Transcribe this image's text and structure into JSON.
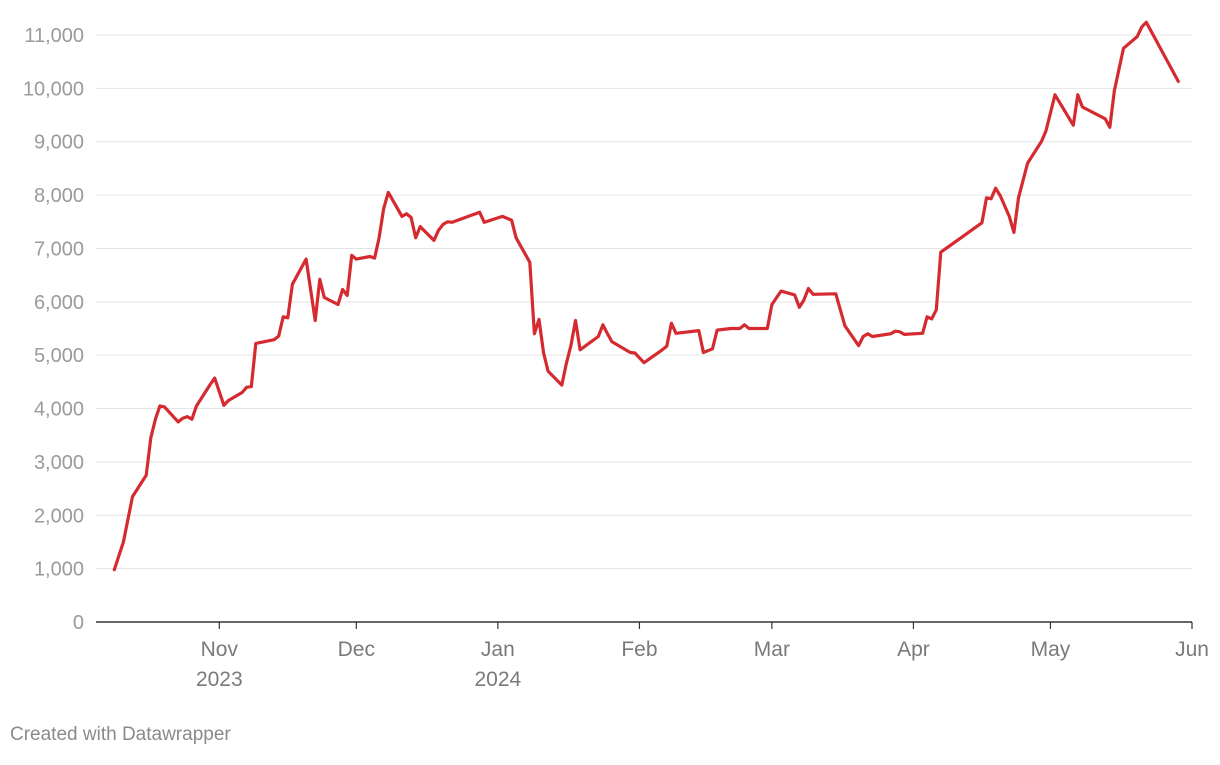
{
  "chart_data": {
    "type": "line",
    "title": "",
    "xlabel": "",
    "ylabel": "",
    "ylim": [
      0,
      11000
    ],
    "yticks": [
      "0",
      "1,000",
      "2,000",
      "3,000",
      "4,000",
      "5,000",
      "6,000",
      "7,000",
      "8,000",
      "9,000",
      "10,000",
      "11,000"
    ],
    "ytick_values": [
      0,
      1000,
      2000,
      3000,
      4000,
      5000,
      6000,
      7000,
      8000,
      9000,
      10000,
      11000
    ],
    "xlim": [
      "2023-10-05",
      "2024-06-01"
    ],
    "xticks": [
      {
        "date": "2023-11-01",
        "label": "Nov",
        "sublabel": "2023"
      },
      {
        "date": "2023-12-01",
        "label": "Dec",
        "sublabel": ""
      },
      {
        "date": "2024-01-01",
        "label": "Jan",
        "sublabel": "2024"
      },
      {
        "date": "2024-02-01",
        "label": "Feb",
        "sublabel": ""
      },
      {
        "date": "2024-03-01",
        "label": "Mar",
        "sublabel": ""
      },
      {
        "date": "2024-04-01",
        "label": "Apr",
        "sublabel": ""
      },
      {
        "date": "2024-05-01",
        "label": "May",
        "sublabel": ""
      },
      {
        "date": "2024-06-01",
        "label": "Jun",
        "sublabel": ""
      }
    ],
    "grid": true,
    "series": [
      {
        "color": "#d52a2f",
        "points": [
          [
            "2023-10-09",
            980
          ],
          [
            "2023-10-11",
            1500
          ],
          [
            "2023-10-13",
            2350
          ],
          [
            "2023-10-16",
            2750
          ],
          [
            "2023-10-17",
            3450
          ],
          [
            "2023-10-18",
            3800
          ],
          [
            "2023-10-19",
            4050
          ],
          [
            "2023-10-20",
            4030
          ],
          [
            "2023-10-23",
            3750
          ],
          [
            "2023-10-24",
            3820
          ],
          [
            "2023-10-25",
            3850
          ],
          [
            "2023-10-26",
            3800
          ],
          [
            "2023-10-27",
            4050
          ],
          [
            "2023-10-30",
            4450
          ],
          [
            "2023-10-31",
            4570
          ],
          [
            "2023-11-02",
            4060
          ],
          [
            "2023-11-03",
            4150
          ],
          [
            "2023-11-06",
            4300
          ],
          [
            "2023-11-07",
            4400
          ],
          [
            "2023-11-08",
            4410
          ],
          [
            "2023-11-09",
            5220
          ],
          [
            "2023-11-13",
            5290
          ],
          [
            "2023-11-14",
            5360
          ],
          [
            "2023-11-15",
            5720
          ],
          [
            "2023-11-16",
            5700
          ],
          [
            "2023-11-17",
            6330
          ],
          [
            "2023-11-20",
            6800
          ],
          [
            "2023-11-22",
            5650
          ],
          [
            "2023-11-23",
            6420
          ],
          [
            "2023-11-24",
            6080
          ],
          [
            "2023-11-27",
            5950
          ],
          [
            "2023-11-28",
            6230
          ],
          [
            "2023-11-29",
            6120
          ],
          [
            "2023-11-30",
            6870
          ],
          [
            "2023-12-01",
            6800
          ],
          [
            "2023-12-04",
            6850
          ],
          [
            "2023-12-05",
            6820
          ],
          [
            "2023-12-06",
            7200
          ],
          [
            "2023-12-07",
            7750
          ],
          [
            "2023-12-08",
            8050
          ],
          [
            "2023-12-11",
            7600
          ],
          [
            "2023-12-12",
            7650
          ],
          [
            "2023-12-13",
            7580
          ],
          [
            "2023-12-14",
            7200
          ],
          [
            "2023-12-15",
            7410
          ],
          [
            "2023-12-18",
            7150
          ],
          [
            "2023-12-19",
            7340
          ],
          [
            "2023-12-20",
            7450
          ],
          [
            "2023-12-21",
            7500
          ],
          [
            "2023-12-22",
            7490
          ],
          [
            "2023-12-28",
            7680
          ],
          [
            "2023-12-29",
            7490
          ],
          [
            "2024-01-02",
            7600
          ],
          [
            "2024-01-04",
            7530
          ],
          [
            "2024-01-05",
            7200
          ],
          [
            "2024-01-08",
            6740
          ],
          [
            "2024-01-09",
            5400
          ],
          [
            "2024-01-10",
            5670
          ],
          [
            "2024-01-11",
            5050
          ],
          [
            "2024-01-12",
            4700
          ],
          [
            "2024-01-15",
            4440
          ],
          [
            "2024-01-16",
            4850
          ],
          [
            "2024-01-17",
            5180
          ],
          [
            "2024-01-18",
            5650
          ],
          [
            "2024-01-19",
            5100
          ],
          [
            "2024-01-23",
            5350
          ],
          [
            "2024-01-24",
            5570
          ],
          [
            "2024-01-25",
            5400
          ],
          [
            "2024-01-26",
            5250
          ],
          [
            "2024-01-30",
            5050
          ],
          [
            "2024-01-31",
            5040
          ],
          [
            "2024-02-02",
            4860
          ],
          [
            "2024-02-06",
            5100
          ],
          [
            "2024-02-07",
            5170
          ],
          [
            "2024-02-08",
            5600
          ],
          [
            "2024-02-09",
            5410
          ],
          [
            "2024-02-14",
            5460
          ],
          [
            "2024-02-15",
            5050
          ],
          [
            "2024-02-17",
            5120
          ],
          [
            "2024-02-18",
            5470
          ],
          [
            "2024-02-21",
            5500
          ],
          [
            "2024-02-23",
            5500
          ],
          [
            "2024-02-24",
            5570
          ],
          [
            "2024-02-25",
            5500
          ],
          [
            "2024-02-29",
            5500
          ],
          [
            "2024-03-01",
            5950
          ],
          [
            "2024-03-03",
            6200
          ],
          [
            "2024-03-06",
            6130
          ],
          [
            "2024-03-07",
            5900
          ],
          [
            "2024-03-08",
            6030
          ],
          [
            "2024-03-09",
            6250
          ],
          [
            "2024-03-10",
            6140
          ],
          [
            "2024-03-15",
            6150
          ],
          [
            "2024-03-17",
            5550
          ],
          [
            "2024-03-20",
            5180
          ],
          [
            "2024-03-21",
            5350
          ],
          [
            "2024-03-22",
            5400
          ],
          [
            "2024-03-23",
            5350
          ],
          [
            "2024-03-27",
            5400
          ],
          [
            "2024-03-28",
            5450
          ],
          [
            "2024-03-29",
            5440
          ],
          [
            "2024-03-30",
            5390
          ],
          [
            "2024-04-03",
            5410
          ],
          [
            "2024-04-04",
            5720
          ],
          [
            "2024-04-05",
            5680
          ],
          [
            "2024-04-06",
            5850
          ],
          [
            "2024-04-07",
            6930
          ],
          [
            "2024-04-16",
            7480
          ],
          [
            "2024-04-17",
            7950
          ],
          [
            "2024-04-18",
            7930
          ],
          [
            "2024-04-19",
            8130
          ],
          [
            "2024-04-20",
            7990
          ],
          [
            "2024-04-22",
            7600
          ],
          [
            "2024-04-23",
            7300
          ],
          [
            "2024-04-24",
            7950
          ],
          [
            "2024-04-26",
            8600
          ],
          [
            "2024-04-29",
            9000
          ],
          [
            "2024-04-30",
            9200
          ],
          [
            "2024-05-02",
            9880
          ],
          [
            "2024-05-06",
            9310
          ],
          [
            "2024-05-07",
            9880
          ],
          [
            "2024-05-08",
            9650
          ],
          [
            "2024-05-13",
            9430
          ],
          [
            "2024-05-14",
            9270
          ],
          [
            "2024-05-15",
            9960
          ],
          [
            "2024-05-17",
            10750
          ],
          [
            "2024-05-20",
            10970
          ],
          [
            "2024-05-21",
            11150
          ],
          [
            "2024-05-22",
            11240
          ],
          [
            "2024-05-29",
            10130
          ]
        ]
      }
    ],
    "footer": "Created with Datawrapper"
  }
}
